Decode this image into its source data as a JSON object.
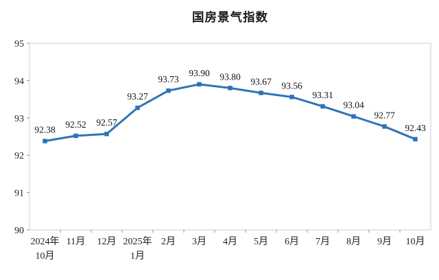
{
  "page": {
    "title": "国房景气指数"
  },
  "chart_data": {
    "type": "line",
    "title": "国房景气指数",
    "categories": [
      [
        "2024年",
        "10月"
      ],
      [
        "11月"
      ],
      [
        "12月"
      ],
      [
        "2025年",
        "1月"
      ],
      [
        "2月"
      ],
      [
        "3月"
      ],
      [
        "4月"
      ],
      [
        "5月"
      ],
      [
        "6月"
      ],
      [
        "7月"
      ],
      [
        "8月"
      ],
      [
        "9月"
      ],
      [
        "10月"
      ]
    ],
    "values": [
      92.38,
      92.52,
      92.57,
      93.27,
      93.73,
      93.9,
      93.8,
      93.67,
      93.56,
      93.31,
      93.04,
      92.77,
      92.43
    ],
    "labels": [
      "92.38",
      "92.52",
      "92.57",
      "93.27",
      "93.73",
      "93.90",
      "93.80",
      "93.67",
      "93.56",
      "93.31",
      "93.04",
      "92.77",
      "92.43"
    ],
    "xlabel": "",
    "ylabel": "",
    "ylim": [
      90,
      95
    ],
    "yticks": [
      90,
      91,
      92,
      93,
      94,
      95
    ],
    "grid": false,
    "legend": false,
    "marker": "square",
    "colors": {
      "line": "#2E74B5",
      "marker": "#2E74B5",
      "frame": "#cfcfcf",
      "tick": "#8f8f8f",
      "text": "#1f1f1f"
    }
  }
}
